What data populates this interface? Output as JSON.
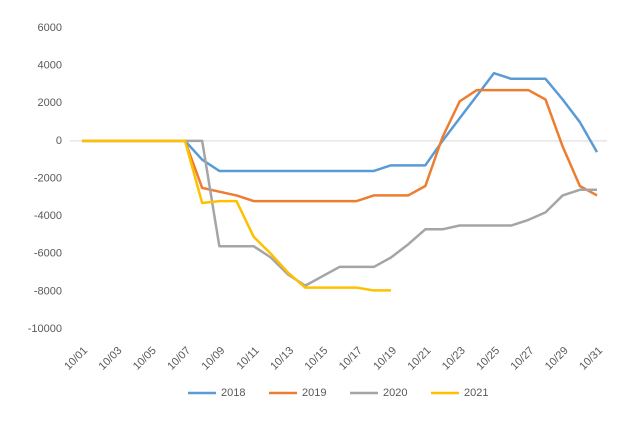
{
  "chart_data": {
    "type": "line",
    "categories": [
      "10/01",
      null,
      "10/03",
      null,
      "10/05",
      null,
      "10/07",
      null,
      "10/09",
      null,
      "10/11",
      null,
      "10/13",
      null,
      "10/15",
      null,
      "10/17",
      null,
      "10/19",
      null,
      "10/21",
      null,
      "10/23",
      null,
      "10/25",
      null,
      "10/27",
      null,
      "10/29",
      null,
      "10/31"
    ],
    "series": [
      {
        "name": "2018",
        "color": "#5b9bd5",
        "values": [
          0,
          0,
          0,
          0,
          0,
          0,
          0,
          -1000,
          -1600,
          -1600,
          -1600,
          -1600,
          -1600,
          -1600,
          -1600,
          -1600,
          -1600,
          -1600,
          -1300,
          -1300,
          -1300,
          0,
          1200,
          2400,
          3600,
          3300,
          3300,
          3300,
          2200,
          1000,
          -600
        ]
      },
      {
        "name": "2019",
        "color": "#ed7d31",
        "values": [
          0,
          0,
          0,
          0,
          0,
          0,
          0,
          -2500,
          -2700,
          -2900,
          -3200,
          -3200,
          -3200,
          -3200,
          -3200,
          -3200,
          -3200,
          -2900,
          -2900,
          -2900,
          -2400,
          200,
          2100,
          2700,
          2700,
          2700,
          2700,
          2200,
          -300,
          -2400,
          -2900
        ]
      },
      {
        "name": "2020",
        "color": "#a5a5a5",
        "values": [
          0,
          0,
          0,
          0,
          0,
          0,
          0,
          0,
          -5600,
          -5600,
          -5600,
          -6200,
          -7100,
          -7700,
          -7200,
          -6700,
          -6700,
          -6700,
          -6200,
          -5500,
          -4700,
          -4700,
          -4500,
          -4500,
          -4500,
          -4500,
          -4200,
          -3800,
          -2900,
          -2600,
          -2600
        ]
      },
      {
        "name": "2021",
        "color": "#ffc000",
        "values": [
          0,
          0,
          0,
          0,
          0,
          0,
          0,
          -3300,
          -3200,
          -3200,
          -5100,
          -6000,
          -7000,
          -7800,
          -7800,
          -7800,
          -7800,
          -7950,
          -7950,
          null,
          null,
          null,
          null,
          null,
          null,
          null,
          null,
          null,
          null,
          null,
          null
        ]
      }
    ],
    "ylim": [
      -10000,
      6000
    ],
    "yticks": [
      -10000,
      -8000,
      -6000,
      -4000,
      -2000,
      0,
      2000,
      4000,
      6000
    ],
    "grid": false,
    "legend": "bottom"
  }
}
